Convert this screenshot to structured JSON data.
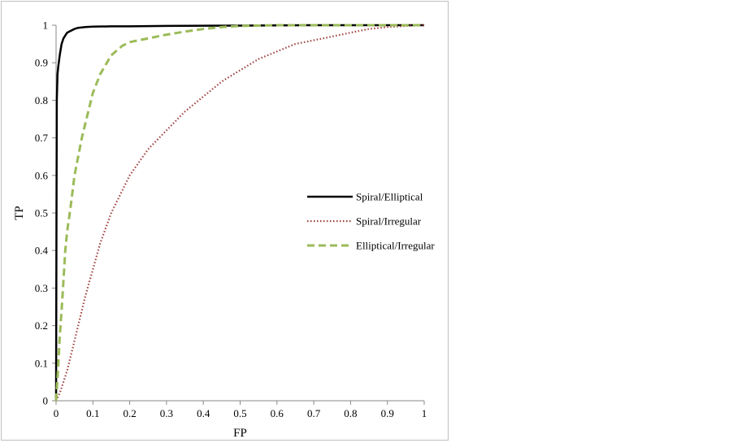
{
  "chart_data": {
    "type": "line",
    "xlabel": "FP",
    "ylabel": "TP",
    "xlim": [
      0,
      1
    ],
    "ylim": [
      0,
      1
    ],
    "x_ticks": [
      "0",
      "0.1",
      "0.2",
      "0.3",
      "0.4",
      "0.5",
      "0.6",
      "0.7",
      "0.8",
      "0.9",
      "1"
    ],
    "y_ticks": [
      "0",
      "0.1",
      "0.2",
      "0.3",
      "0.4",
      "0.5",
      "0.6",
      "0.7",
      "0.8",
      "0.9",
      "1"
    ],
    "grid": false,
    "legend_position": "right-middle",
    "series": [
      {
        "name": "Spiral/Elliptical",
        "color": "#000000",
        "style": "solid",
        "x": [
          0,
          0.001,
          0.002,
          0.004,
          0.006,
          0.01,
          0.015,
          0.02,
          0.03,
          0.04,
          0.05,
          0.06,
          0.08,
          0.1,
          0.15,
          0.2,
          0.3,
          0.5,
          0.7,
          1.0
        ],
        "y": [
          0,
          0.48,
          0.8,
          0.87,
          0.89,
          0.92,
          0.95,
          0.965,
          0.98,
          0.985,
          0.99,
          0.993,
          0.995,
          0.996,
          0.997,
          0.997,
          0.998,
          0.999,
          1.0,
          1.0
        ]
      },
      {
        "name": "Spiral/Irregular",
        "color": "#a0403f",
        "style": "dotted",
        "x": [
          0,
          0.01,
          0.02,
          0.03,
          0.04,
          0.05,
          0.06,
          0.08,
          0.1,
          0.12,
          0.15,
          0.18,
          0.2,
          0.25,
          0.3,
          0.35,
          0.4,
          0.45,
          0.5,
          0.55,
          0.6,
          0.65,
          0.7,
          0.75,
          0.8,
          0.85,
          0.9,
          0.95,
          1.0
        ],
        "y": [
          0,
          0.02,
          0.05,
          0.08,
          0.12,
          0.16,
          0.2,
          0.28,
          0.35,
          0.42,
          0.5,
          0.56,
          0.6,
          0.67,
          0.72,
          0.77,
          0.81,
          0.85,
          0.88,
          0.91,
          0.93,
          0.95,
          0.96,
          0.97,
          0.98,
          0.99,
          0.995,
          0.998,
          1.0
        ]
      },
      {
        "name": "Elliptical/Irregular",
        "color": "#9bbb59",
        "style": "dashed",
        "x": [
          0,
          0.005,
          0.01,
          0.015,
          0.02,
          0.025,
          0.03,
          0.04,
          0.05,
          0.06,
          0.07,
          0.08,
          0.1,
          0.12,
          0.15,
          0.18,
          0.2,
          0.25,
          0.3,
          0.35,
          0.4,
          0.45,
          0.5,
          0.6,
          0.7,
          1.0
        ],
        "y": [
          0,
          0.08,
          0.17,
          0.24,
          0.32,
          0.4,
          0.45,
          0.52,
          0.6,
          0.65,
          0.7,
          0.74,
          0.82,
          0.87,
          0.92,
          0.945,
          0.955,
          0.965,
          0.975,
          0.983,
          0.99,
          0.995,
          0.998,
          1.0,
          1.0,
          1.0
        ]
      }
    ]
  }
}
